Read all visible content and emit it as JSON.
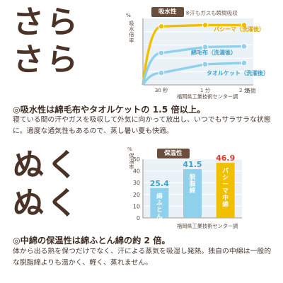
{
  "section1": {
    "word_top": "さら",
    "word_bottom": "さら",
    "heading": "◎吸水性は綿毛布やタオルケットの 1.5 倍以上。",
    "body": "寝ている間の汗やガスを吸収して外気に向かって放出し、いつでもサラサラな状態に。適度な通気性もあるので、蒸し暑い夏も快適。"
  },
  "section2": {
    "word_top": "ぬく",
    "word_bottom": "ぬく",
    "heading": "◎中綿の保温性は綿ふとん綿の約 2 倍。",
    "body": "体から出る熱を保つだけでなく、汗による蒸気を吸湿し発熱。独自の中綿は一般的な脱脂綿よりも温かく、軽く、蒸れません。"
  },
  "chart_data": [
    {
      "type": "line",
      "tag": "吸水性",
      "note": "※汗もガスも瞬間吸収",
      "unit": "%",
      "ylabel": "吸水倍率",
      "x": [
        "30 秒",
        "1 分",
        "2 分"
      ],
      "xaxis_suffix": "時間",
      "xlabel": "",
      "source": "福岡県工業技術センター調",
      "series": [
        {
          "name": "パシーマ（洗濯後）",
          "color": "#f0c000",
          "values": [
            88,
            90,
            90
          ]
        },
        {
          "name": "綿毛布（洗濯後）",
          "color": "#8fd0ec",
          "values": [
            48,
            57,
            58
          ]
        },
        {
          "name": "タオルケット（洗濯後）",
          "color": "#8fd0ec",
          "values": [
            18,
            31,
            33
          ]
        }
      ]
    },
    {
      "type": "bar",
      "tag": "保温性",
      "unit": "%",
      "ylabel": "保温率",
      "ylim": [
        0,
        50
      ],
      "yticks": [
        0,
        10,
        20,
        30,
        40,
        50
      ],
      "source": "福岡県工業技術センター調",
      "categories": [
        "綿ふとん綿",
        "脱脂綿",
        "パシーマ中綿"
      ],
      "values": [
        25.4,
        41.5,
        46.9
      ],
      "value_labels": [
        "25.4",
        "41.5",
        "46.9"
      ],
      "colors": [
        "#8fd0ec",
        "#8fd0ec",
        "#f0c000"
      ],
      "value_colors": [
        "#3ba2d0",
        "#3ba2d0",
        "#e03a2a"
      ]
    }
  ]
}
